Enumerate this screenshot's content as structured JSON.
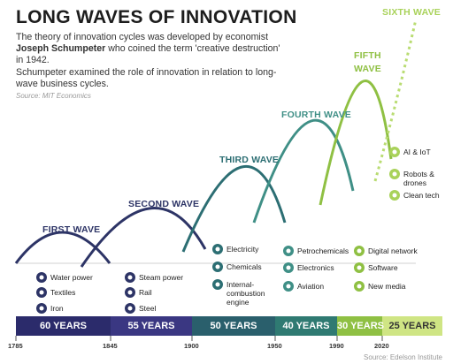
{
  "header": {
    "title": "LONG WAVES OF INNOVATION",
    "paragraphs": [
      [
        "The theory of innovation cycles was developed by economist ",
        "Joseph Schumpeter",
        " who coined the term 'creative destruction' in 1942."
      ],
      [
        "Schumpeter examined the role of innovation in relation to long-wave business cycles."
      ]
    ],
    "source": "Source: MIT Economics"
  },
  "waves": [
    {
      "label": "FIRST WAVE",
      "items": [
        "Water power",
        "Textiles",
        "Iron"
      ],
      "duration": "60 YEARS"
    },
    {
      "label": "SECOND WAVE",
      "items": [
        "Steam power",
        "Rail",
        "Steel"
      ],
      "duration": "55 YEARS"
    },
    {
      "label": "THIRD WAVE",
      "items": [
        "Electricity",
        "Chemicals",
        "Internal-combustion engine"
      ],
      "duration": "50 YEARS"
    },
    {
      "label": "FOURTH WAVE",
      "items": [
        "Petrochemicals",
        "Electronics",
        "Aviation"
      ],
      "duration": "40 YEARS"
    },
    {
      "label": "FIFTH WAVE",
      "items": [
        "Digital network",
        "Software",
        "New media"
      ],
      "duration": "30 YEARS"
    },
    {
      "label": "SIXTH WAVE",
      "items": [
        "AI & IoT",
        "Robots & drones",
        "Clean tech"
      ],
      "duration": "25 YEARS"
    }
  ],
  "timeline": {
    "years": [
      "1785",
      "1845",
      "1900",
      "1950",
      "1990",
      "2020"
    ]
  },
  "footer": {
    "source": "Source: Edelson Institute"
  }
}
